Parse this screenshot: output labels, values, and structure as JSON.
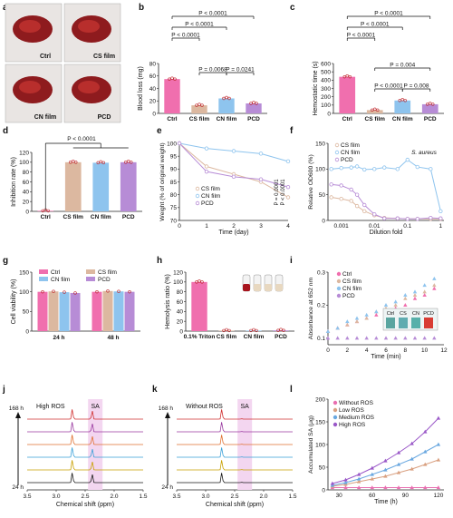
{
  "panel_letters": [
    "a",
    "b",
    "c",
    "d",
    "e",
    "f",
    "g",
    "h",
    "i",
    "j",
    "k",
    "l"
  ],
  "colors": {
    "ctrl": "#f06fae",
    "cs": "#dcb8a0",
    "cn": "#8ec4ee",
    "pcd": "#b78cd6",
    "axis": "#222222",
    "nmr_band": "#f3d6f0"
  },
  "chart_data": [
    {
      "panel": "a",
      "type": "image",
      "labels": [
        "Ctrl",
        "CS film",
        "CN film",
        "PCD"
      ]
    },
    {
      "panel": "b",
      "type": "bar",
      "categories": [
        "Ctrl",
        "CS film",
        "CN film",
        "PCD"
      ],
      "values": [
        55,
        13,
        24,
        16
      ],
      "xlabel": "",
      "ylabel": "Blood loss (mg)",
      "ylim": [
        0,
        80
      ],
      "yticks": [
        0,
        20,
        40,
        60,
        80
      ],
      "significance": [
        "P < 0.0001",
        "P < 0.0001",
        "P < 0.0001",
        "P = 0.0068",
        "P = 0.0241"
      ]
    },
    {
      "panel": "c",
      "type": "bar",
      "categories": [
        "Ctrl",
        "CS film",
        "CN film",
        "PCD"
      ],
      "values": [
        440,
        40,
        155,
        110
      ],
      "xlabel": "",
      "ylabel": "Hemostatic time (s)",
      "ylim": [
        0,
        600
      ],
      "yticks": [
        0,
        100,
        200,
        300,
        400,
        500,
        600
      ],
      "significance": [
        "P < 0.0001",
        "P < 0.0001",
        "P < 0.0001",
        "P = 0.004",
        "P < 0.0001",
        "P = 0.008"
      ]
    },
    {
      "panel": "d",
      "type": "bar",
      "categories": [
        "Ctrl",
        "CS film",
        "CN film",
        "PCD"
      ],
      "values": [
        0,
        100,
        99,
        100
      ],
      "xlabel": "",
      "ylabel": "Inhibition rate (%)",
      "ylim": [
        0,
        120
      ],
      "yticks": [
        0,
        20,
        40,
        60,
        80,
        100,
        120
      ],
      "significance": [
        "P < 0.0001"
      ]
    },
    {
      "panel": "e",
      "type": "line",
      "x": [
        0,
        1,
        2,
        3,
        4
      ],
      "series": [
        {
          "name": "CS film",
          "values": [
            100,
            91,
            88,
            85,
            79
          ]
        },
        {
          "name": "CN film",
          "values": [
            100,
            98,
            97,
            96,
            93
          ]
        },
        {
          "name": "PCD",
          "values": [
            100,
            89,
            87,
            86,
            83
          ]
        }
      ],
      "xlabel": "Time (day)",
      "ylabel": "Weight (% of original weight)",
      "xlim": [
        0,
        4
      ],
      "ylim": [
        70,
        100
      ],
      "yticks": [
        70,
        75,
        80,
        85,
        90,
        95,
        100
      ],
      "annotations": [
        "P = 0.0001",
        "P < 0.0001"
      ]
    },
    {
      "panel": "f",
      "type": "scatter",
      "x": [
        0.0005,
        0.001,
        0.002,
        0.003,
        0.005,
        0.01,
        0.02,
        0.05,
        0.1,
        0.2,
        0.5,
        1
      ],
      "series": [
        {
          "name": "CS film",
          "values": [
            45,
            42,
            38,
            28,
            18,
            10,
            5,
            4,
            3,
            3,
            3,
            3
          ]
        },
        {
          "name": "CN film",
          "values": [
            100,
            102,
            103,
            105,
            99,
            100,
            103,
            100,
            118,
            104,
            100,
            18
          ]
        },
        {
          "name": "PCD",
          "values": [
            70,
            68,
            60,
            50,
            30,
            12,
            4,
            4,
            3,
            3,
            5,
            4
          ]
        }
      ],
      "xlabel": "Dilution fold",
      "ylabel": "Relative OD600 (%)",
      "xlog": true,
      "ylim": [
        0,
        150
      ],
      "yticks": [
        0,
        50,
        100,
        150
      ],
      "xticks": [
        "0.001",
        "0.01",
        "0.1",
        "1"
      ],
      "annotation": "S. aureus"
    },
    {
      "panel": "g",
      "type": "bar",
      "categories": [
        "24 h",
        "48 h"
      ],
      "series": [
        {
          "name": "Ctrl",
          "values": [
            100,
            100
          ]
        },
        {
          "name": "CS film",
          "values": [
            101,
            102
          ]
        },
        {
          "name": "CN film",
          "values": [
            99,
            101
          ]
        },
        {
          "name": "PCD",
          "values": [
            97,
            100
          ]
        }
      ],
      "xlabel": "",
      "ylabel": "Cell viability (%)",
      "ylim": [
        0,
        150
      ],
      "yticks": [
        0,
        50,
        100,
        150
      ]
    },
    {
      "panel": "h",
      "type": "bar",
      "categories": [
        "0.1% Triton",
        "CS film",
        "CN film",
        "PCD"
      ],
      "values": [
        100,
        1,
        1,
        1.5
      ],
      "xlabel": "",
      "ylabel": "Hemolysis ratio (%)",
      "ylim": [
        0,
        120
      ],
      "yticks": [
        0,
        20,
        40,
        60,
        80,
        100,
        120
      ]
    },
    {
      "panel": "i",
      "type": "scatter",
      "x": [
        0,
        1,
        2,
        3,
        4,
        5,
        6,
        7,
        8,
        9,
        10,
        11
      ],
      "series": [
        {
          "name": "Ctrl",
          "values": [
            0.12,
            0.13,
            0.14,
            0.15,
            0.16,
            0.17,
            0.18,
            0.19,
            0.2,
            0.22,
            0.23,
            0.25
          ]
        },
        {
          "name": "CS film",
          "values": [
            0.12,
            0.13,
            0.14,
            0.15,
            0.16,
            0.18,
            0.19,
            0.2,
            0.22,
            0.23,
            0.24,
            0.26
          ]
        },
        {
          "name": "CN film",
          "values": [
            0.12,
            0.13,
            0.15,
            0.16,
            0.17,
            0.18,
            0.2,
            0.21,
            0.23,
            0.24,
            0.26,
            0.28
          ]
        },
        {
          "name": "PCD",
          "values": [
            0.1,
            0.1,
            0.1,
            0.1,
            0.1,
            0.1,
            0.1,
            0.1,
            0.1,
            0.1,
            0.1,
            0.1
          ]
        }
      ],
      "xlabel": "Time (min)",
      "ylabel": "Absorbance at 652 nm",
      "xlim": [
        0,
        12
      ],
      "ylim": [
        0.08,
        0.3
      ],
      "yticks": [
        0.1,
        0.2,
        0.3
      ],
      "inset_labels": [
        "Ctrl",
        "CS",
        "CN",
        "PCD"
      ]
    },
    {
      "panel": "j",
      "type": "area",
      "title": "High ROS",
      "xlabel": "Chemical shift (ppm)",
      "x_ticks": [
        "3.5",
        "3.0",
        "2.5",
        "2.0",
        "1.5"
      ],
      "band_label": "SA",
      "time_labels": [
        "168 h",
        "24 h"
      ],
      "trace_colors": [
        "#1a1a1a",
        "#c8a000",
        "#3aa0d8",
        "#e07030",
        "#9a3aa0",
        "#d03030"
      ]
    },
    {
      "panel": "k",
      "type": "area",
      "title": "Without ROS",
      "xlabel": "Chemical shift (ppm)",
      "x_ticks": [
        "3.5",
        "3.0",
        "2.5",
        "2.0",
        "1.5"
      ],
      "band_label": "SA",
      "time_labels": [
        "168 h",
        "24 h"
      ],
      "trace_colors": [
        "#1a1a1a",
        "#c8a000",
        "#3aa0d8",
        "#e07030",
        "#9a3aa0",
        "#d03030"
      ]
    },
    {
      "panel": "l",
      "type": "line",
      "x": [
        24,
        36,
        48,
        60,
        72,
        84,
        96,
        108,
        120
      ],
      "series": [
        {
          "name": "Without ROS",
          "values": [
            5,
            5,
            5,
            5,
            5,
            5,
            5,
            5,
            5
          ]
        },
        {
          "name": "Low ROS",
          "values": [
            8,
            12,
            18,
            24,
            30,
            38,
            46,
            56,
            66
          ]
        },
        {
          "name": "Medium ROS",
          "values": [
            10,
            16,
            24,
            34,
            44,
            56,
            68,
            84,
            100
          ]
        },
        {
          "name": "High ROS",
          "values": [
            14,
            22,
            34,
            48,
            64,
            82,
            102,
            128,
            158
          ]
        }
      ],
      "xlabel": "Time (h)",
      "ylabel": "Accumulated SA (μg)",
      "xlim": [
        20,
        125
      ],
      "ylim": [
        0,
        200
      ],
      "yticks": [
        0,
        50,
        100,
        150,
        200
      ],
      "xticks": [
        30,
        60,
        90,
        120
      ]
    }
  ]
}
